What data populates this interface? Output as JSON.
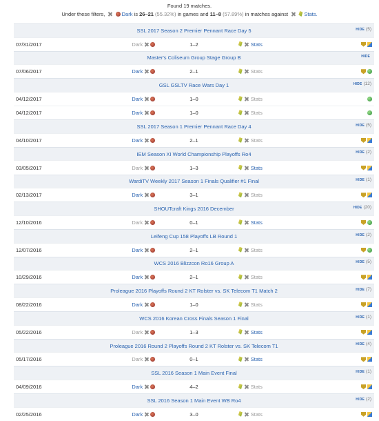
{
  "summary": {
    "found": "Found 19 matches.",
    "prefix": "Under these filters,",
    "player": "Dark",
    "is_word": "is",
    "games_record": "26–21",
    "games_pct": "(55.32%)",
    "games_text": "in games and",
    "matches_record": "11–8",
    "matches_pct": "(57.89%)",
    "matches_text": "in matches against",
    "stats_link": "Stats."
  },
  "hide_label": "HIDE",
  "rows": [
    {
      "type": "event",
      "name": "SSL 2017 Season 2 Premier Pennant Race Day 5",
      "count": "(5)"
    },
    {
      "type": "match",
      "date": "07/31/2017",
      "player": "Dark",
      "dim": true,
      "score": "1–2",
      "opp": "Stats",
      "opp_dim": false,
      "icons": [
        "shield",
        "cube"
      ]
    },
    {
      "type": "event",
      "name": "Master's Coliseum Group Stage Group B",
      "count": ""
    },
    {
      "type": "match",
      "date": "07/06/2017",
      "player": "Dark",
      "dim": false,
      "score": "2–1",
      "opp": "Stats",
      "opp_dim": true,
      "icons": [
        "shield",
        "globe"
      ]
    },
    {
      "type": "event",
      "name": "GSL GSLTV Race Wars Day 1",
      "count": "(12)"
    },
    {
      "type": "match",
      "date": "04/12/2017",
      "player": "Dark",
      "dim": false,
      "score": "1–0",
      "opp": "Stats",
      "opp_dim": true,
      "icons": [
        "globe"
      ]
    },
    {
      "type": "match",
      "date": "04/12/2017",
      "player": "Dark",
      "dim": false,
      "score": "1–0",
      "opp": "Stats",
      "opp_dim": true,
      "icons": [
        "globe"
      ]
    },
    {
      "type": "event",
      "name": "SSL 2017 Season 1 Premier Pennant Race Day 4",
      "count": "(5)"
    },
    {
      "type": "match",
      "date": "04/10/2017",
      "player": "Dark",
      "dim": false,
      "score": "2–1",
      "opp": "Stats",
      "opp_dim": true,
      "icons": [
        "shield",
        "cube"
      ]
    },
    {
      "type": "event",
      "name": "IEM Season XI World Championship Playoffs Ro4",
      "count": "(2)"
    },
    {
      "type": "match",
      "date": "03/05/2017",
      "player": "Dark",
      "dim": true,
      "score": "1–3",
      "opp": "Stats",
      "opp_dim": false,
      "icons": [
        "shield",
        "cube"
      ]
    },
    {
      "type": "event",
      "name": "WardiTV Weekly 2017 Season 1 Finals Qualifier #1 Final",
      "count": "(1)"
    },
    {
      "type": "match",
      "date": "02/13/2017",
      "player": "Dark",
      "dim": false,
      "score": "3–1",
      "opp": "Stats",
      "opp_dim": true,
      "icons": [
        "shield",
        "cube"
      ]
    },
    {
      "type": "event",
      "name": "SHOUTcraft Kings 2016 December",
      "count": "(20)"
    },
    {
      "type": "match",
      "date": "12/10/2016",
      "player": "Dark",
      "dim": true,
      "score": "0–1",
      "opp": "Stats",
      "opp_dim": false,
      "icons": [
        "shield",
        "globe"
      ]
    },
    {
      "type": "event",
      "name": "Leifeng Cup 158 Playoffs LB Round 1",
      "count": "(2)"
    },
    {
      "type": "match",
      "date": "12/07/2016",
      "player": "Dark",
      "dim": false,
      "score": "2–1",
      "opp": "Stats",
      "opp_dim": true,
      "icons": [
        "shield",
        "globe"
      ]
    },
    {
      "type": "event",
      "name": "WCS 2016 Blizzcon Ro16 Group A",
      "count": "(5)"
    },
    {
      "type": "match",
      "date": "10/29/2016",
      "player": "Dark",
      "dim": false,
      "score": "2–1",
      "opp": "Stats",
      "opp_dim": true,
      "icons": [
        "shield",
        "cube"
      ]
    },
    {
      "type": "event",
      "name": "Proleague 2016 Playoffs Round 2 KT Rolster vs. SK Telecom T1 Match 2",
      "count": "(7)"
    },
    {
      "type": "match",
      "date": "08/22/2016",
      "player": "Dark",
      "dim": false,
      "score": "1–0",
      "opp": "Stats",
      "opp_dim": true,
      "icons": [
        "shield",
        "cube"
      ]
    },
    {
      "type": "event",
      "name": "WCS 2016 Korean Cross Finals Season 1 Final",
      "count": "(1)"
    },
    {
      "type": "match",
      "date": "05/22/2016",
      "player": "Dark",
      "dim": true,
      "score": "1–3",
      "opp": "Stats",
      "opp_dim": false,
      "icons": [
        "shield",
        "cube"
      ]
    },
    {
      "type": "event",
      "name": "Proleague 2016 Round 2 Playoffs Round 2 KT Rolster vs. SK Telecom T1",
      "count": "(4)"
    },
    {
      "type": "match",
      "date": "05/17/2016",
      "player": "Dark",
      "dim": true,
      "score": "0–1",
      "opp": "Stats",
      "opp_dim": false,
      "icons": [
        "shield",
        "cube"
      ]
    },
    {
      "type": "event",
      "name": "SSL 2016 Season 1 Main Event Final",
      "count": "(1)"
    },
    {
      "type": "match",
      "date": "04/09/2016",
      "player": "Dark",
      "dim": false,
      "score": "4–2",
      "opp": "Stats",
      "opp_dim": true,
      "icons": [
        "shield",
        "cube"
      ]
    },
    {
      "type": "event",
      "name": "SSL 2016 Season 1 Main Event WB Ro4",
      "count": "(2)"
    },
    {
      "type": "match",
      "date": "02/25/2016",
      "player": "Dark",
      "dim": false,
      "score": "3–0",
      "opp": "Stats",
      "opp_dim": true,
      "icons": [
        "shield",
        "cube"
      ]
    }
  ]
}
